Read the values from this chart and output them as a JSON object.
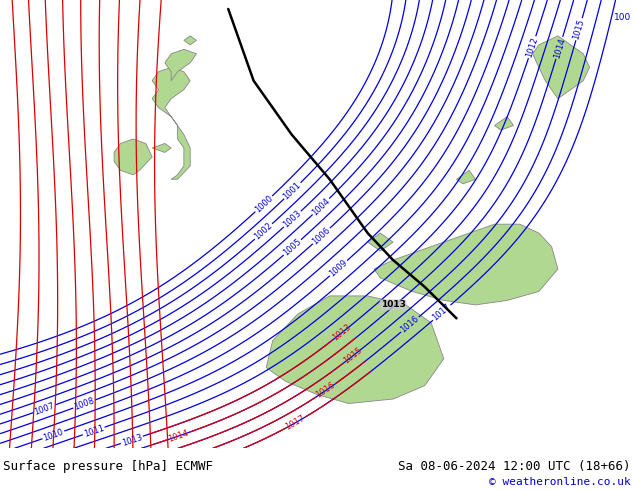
{
  "title_left": "Surface pressure [hPa] ECMWF",
  "title_right": "Sa 08-06-2024 12:00 UTC (18+66)",
  "copyright": "© weatheronline.co.uk",
  "bg_color": "#c8c8c8",
  "land_color": "#b0d890",
  "coast_color": "#888888",
  "blue_color": "#0000dd",
  "red_color": "#dd0000",
  "black_color": "#000000",
  "bottom_bar_color": "#d8d8d8",
  "bottom_text_color": "#000000",
  "copyright_color": "#0000cc",
  "figsize": [
    6.34,
    4.9
  ],
  "dpi": 100
}
